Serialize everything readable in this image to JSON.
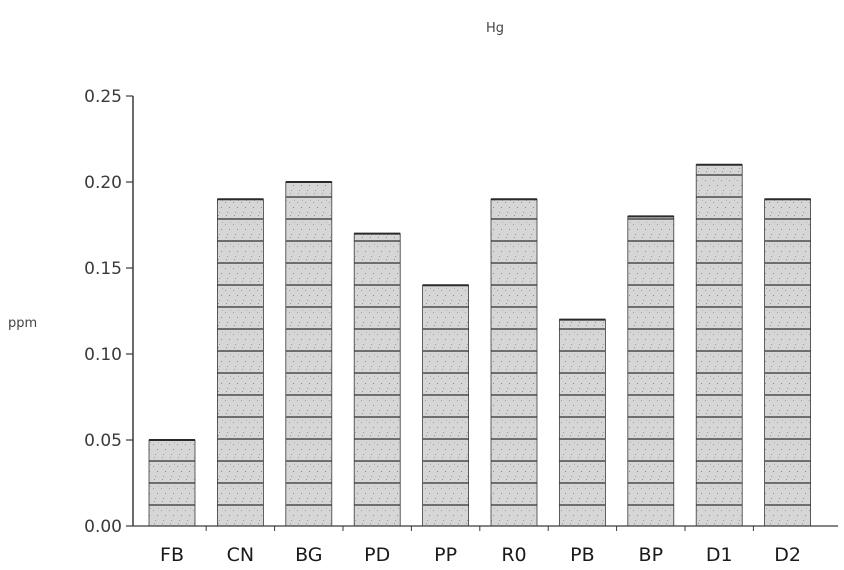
{
  "chart_data": {
    "type": "bar",
    "title": "Hg",
    "ylabel": "ppm",
    "xlabel": "",
    "categories": [
      "FB",
      "CN",
      "BG",
      "PD",
      "PP",
      "R0",
      "PB",
      "BP",
      "D1",
      "D2"
    ],
    "values": [
      0.05,
      0.19,
      0.2,
      0.17,
      0.14,
      0.19,
      0.12,
      0.18,
      0.21,
      0.19
    ],
    "ylim": [
      0,
      0.25
    ],
    "yticks": [
      "0.00",
      "0.05",
      "0.10",
      "0.15",
      "0.20",
      "0.25"
    ],
    "grid": false,
    "colors": {
      "bar_fill": "#d4d4d4",
      "bar_stripe": "#6a6a6a",
      "bar_outline": "#3a3a3a",
      "axis": "#3a3a3a"
    }
  }
}
